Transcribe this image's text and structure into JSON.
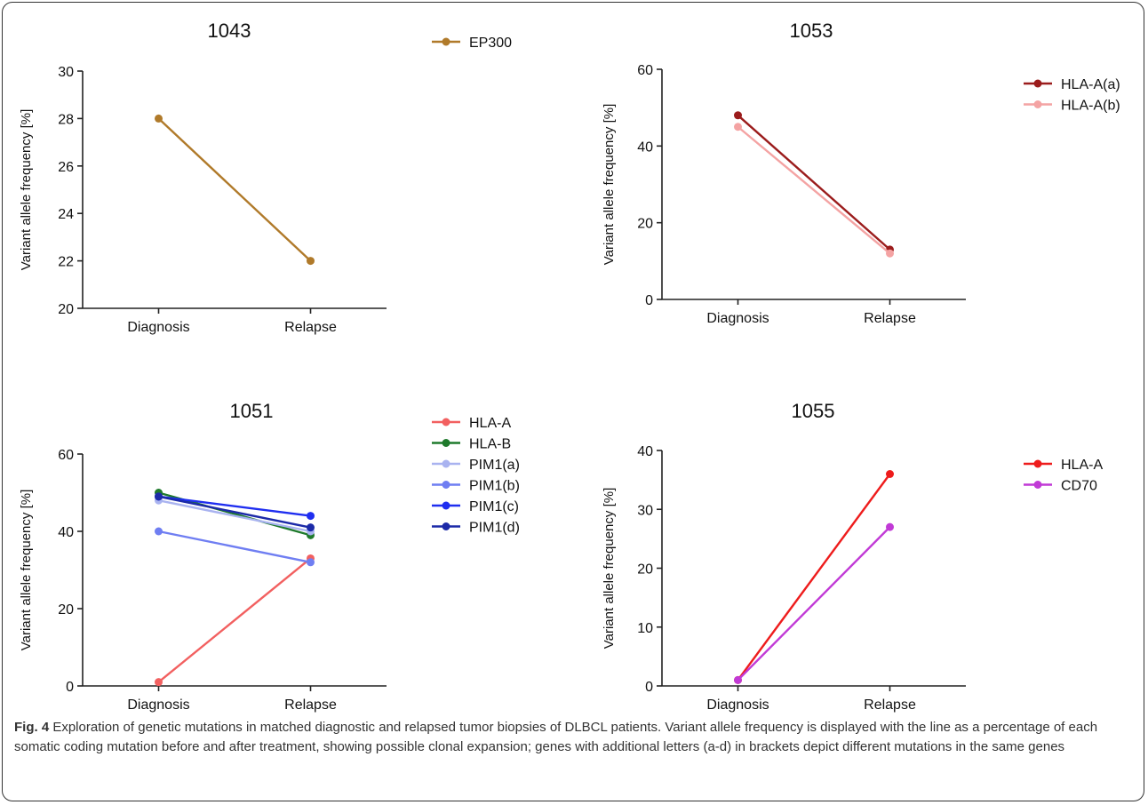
{
  "chart_data": [
    {
      "type": "line",
      "title": "1043",
      "ylabel": "Variant allele frequency [%]",
      "categories": [
        "Diagnosis",
        "Relapse"
      ],
      "ylim": [
        20,
        30
      ],
      "yticks": [
        20,
        22,
        24,
        26,
        28,
        30
      ],
      "legend": "right",
      "series": [
        {
          "name": "EP300",
          "color": "#b07a2a",
          "values": [
            28,
            22
          ]
        }
      ]
    },
    {
      "type": "line",
      "title": "1053",
      "ylabel": "Variant allele frequency [%]",
      "categories": [
        "Diagnosis",
        "Relapse"
      ],
      "ylim": [
        0,
        60
      ],
      "yticks": [
        0,
        20,
        40,
        60
      ],
      "legend": "right",
      "series": [
        {
          "name": "HLA-A(a)",
          "color": "#9b1c1c",
          "values": [
            48,
            13
          ]
        },
        {
          "name": "HLA-A(b)",
          "color": "#f4a3a3",
          "values": [
            45,
            12
          ]
        }
      ]
    },
    {
      "type": "line",
      "title": "1051",
      "ylabel": "Variant allele frequency [%]",
      "categories": [
        "Diagnosis",
        "Relapse"
      ],
      "ylim": [
        0,
        60
      ],
      "yticks": [
        0,
        20,
        40,
        60
      ],
      "legend": "right",
      "series": [
        {
          "name": "HLA-A",
          "color": "#f26060",
          "values": [
            1,
            33
          ]
        },
        {
          "name": "HLA-B",
          "color": "#1f7a2c",
          "values": [
            50,
            39
          ]
        },
        {
          "name": "PIM1(a)",
          "color": "#a9b3f0",
          "values": [
            48,
            40
          ]
        },
        {
          "name": "PIM1(b)",
          "color": "#6f7ef2",
          "values": [
            40,
            32
          ]
        },
        {
          "name": "PIM1(c)",
          "color": "#1f2ef0",
          "values": [
            49,
            44
          ]
        },
        {
          "name": "PIM1(d)",
          "color": "#1c2aa8",
          "values": [
            49,
            41
          ]
        }
      ]
    },
    {
      "type": "line",
      "title": "1055",
      "ylabel": "Variant allele frequency [%]",
      "categories": [
        "Diagnosis",
        "Relapse"
      ],
      "ylim": [
        0,
        40
      ],
      "yticks": [
        0,
        10,
        20,
        30,
        40
      ],
      "legend": "right",
      "series": [
        {
          "name": "HLA-A",
          "color": "#ee1c1c",
          "values": [
            1,
            36
          ]
        },
        {
          "name": "CD70",
          "color": "#c13ad6",
          "values": [
            1,
            27
          ]
        }
      ]
    }
  ],
  "caption": {
    "label": "Fig. 4",
    "text": " Exploration of genetic mutations in matched diagnostic and relapsed tumor biopsies of DLBCL patients. Variant allele frequency is displayed with the line as a percentage of each somatic coding mutation before and after treatment, showing possible clonal expansion; genes with additional letters (a-d) in brackets depict different mutations in the same genes"
  }
}
